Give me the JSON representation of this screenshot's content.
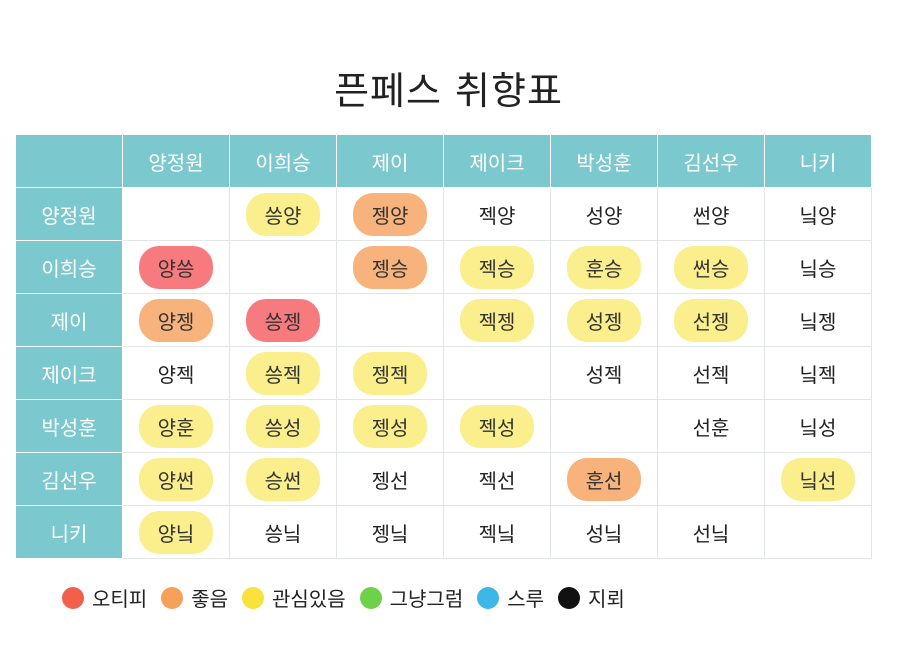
{
  "title": "픈페스 취향표",
  "columns": [
    "양정원",
    "이희승",
    "제이",
    "제이크",
    "박성훈",
    "김선우",
    "니키"
  ],
  "rows": [
    {
      "name": "양정원",
      "cells": [
        {
          "text": "",
          "level": "none"
        },
        {
          "text": "씅양",
          "level": "interest"
        },
        {
          "text": "젱양",
          "level": "like"
        },
        {
          "text": "젝양",
          "level": "none"
        },
        {
          "text": "성양",
          "level": "none"
        },
        {
          "text": "썬양",
          "level": "none"
        },
        {
          "text": "닠양",
          "level": "none"
        }
      ]
    },
    {
      "name": "이희승",
      "cells": [
        {
          "text": "양씅",
          "level": "otp"
        },
        {
          "text": "",
          "level": "none"
        },
        {
          "text": "젱승",
          "level": "like"
        },
        {
          "text": "젝승",
          "level": "interest"
        },
        {
          "text": "훈승",
          "level": "interest"
        },
        {
          "text": "썬승",
          "level": "interest"
        },
        {
          "text": "닠승",
          "level": "none"
        }
      ]
    },
    {
      "name": "제이",
      "cells": [
        {
          "text": "양젱",
          "level": "like"
        },
        {
          "text": "씅젱",
          "level": "otp"
        },
        {
          "text": "",
          "level": "none"
        },
        {
          "text": "젝젱",
          "level": "interest"
        },
        {
          "text": "성젱",
          "level": "interest"
        },
        {
          "text": "선젱",
          "level": "interest"
        },
        {
          "text": "닠젱",
          "level": "none"
        }
      ]
    },
    {
      "name": "제이크",
      "cells": [
        {
          "text": "양젝",
          "level": "none"
        },
        {
          "text": "씅젝",
          "level": "interest"
        },
        {
          "text": "젱젝",
          "level": "interest"
        },
        {
          "text": "",
          "level": "none"
        },
        {
          "text": "성젝",
          "level": "none"
        },
        {
          "text": "선젝",
          "level": "none"
        },
        {
          "text": "닠젝",
          "level": "none"
        }
      ]
    },
    {
      "name": "박성훈",
      "cells": [
        {
          "text": "양훈",
          "level": "interest"
        },
        {
          "text": "씅성",
          "level": "interest"
        },
        {
          "text": "젱성",
          "level": "interest"
        },
        {
          "text": "젝성",
          "level": "interest"
        },
        {
          "text": "",
          "level": "none"
        },
        {
          "text": "선훈",
          "level": "none"
        },
        {
          "text": "닠성",
          "level": "none"
        }
      ]
    },
    {
      "name": "김선우",
      "cells": [
        {
          "text": "양썬",
          "level": "interest"
        },
        {
          "text": "승썬",
          "level": "interest"
        },
        {
          "text": "젱선",
          "level": "none"
        },
        {
          "text": "젝선",
          "level": "none"
        },
        {
          "text": "훈선",
          "level": "like"
        },
        {
          "text": "",
          "level": "none"
        },
        {
          "text": "닠선",
          "level": "interest"
        }
      ]
    },
    {
      "name": "니키",
      "cells": [
        {
          "text": "양닠",
          "level": "interest"
        },
        {
          "text": "씅닠",
          "level": "none"
        },
        {
          "text": "젱닠",
          "level": "none"
        },
        {
          "text": "젝닠",
          "level": "none"
        },
        {
          "text": "성닠",
          "level": "none"
        },
        {
          "text": "선닠",
          "level": "none"
        },
        {
          "text": "",
          "level": "none"
        }
      ]
    }
  ],
  "legend": [
    {
      "key": "otp",
      "label": "오티피",
      "color": "#f2604b"
    },
    {
      "key": "like",
      "label": "좋음",
      "color": "#f7a05a"
    },
    {
      "key": "interest",
      "label": "관심있음",
      "color": "#f8e23b"
    },
    {
      "key": "meh",
      "label": "그냥그럼",
      "color": "#6fd04a"
    },
    {
      "key": "skip",
      "label": "스루",
      "color": "#3db8e6"
    },
    {
      "key": "mine",
      "label": "지뢰",
      "color": "#111111"
    }
  ],
  "pill_colors": {
    "otp": "#f77b7e",
    "like": "#f8b27b",
    "interest": "#fbee8c"
  },
  "header_color": "#7cc8cf"
}
